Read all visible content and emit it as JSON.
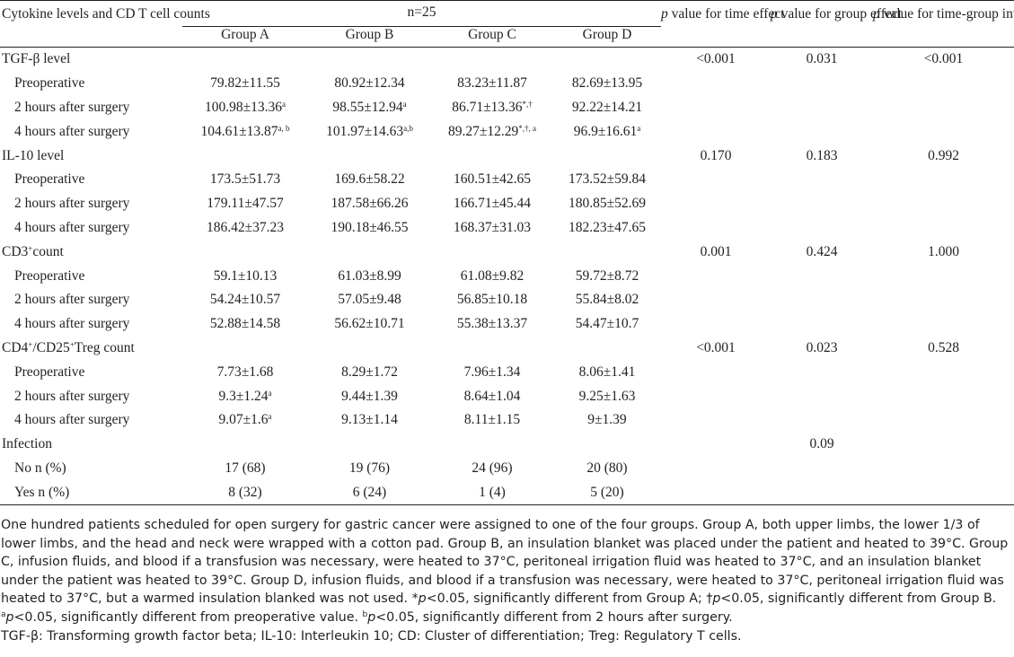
{
  "header": {
    "row_label": "Cytokine levels and CD T cell counts",
    "n_label": "n=25",
    "groups": [
      "Group A",
      "Group B",
      "Group C",
      "Group D"
    ],
    "p_time_label": "value for time effect",
    "p_group_label": "value for group effect",
    "p_inter_label": "value for time-group interaction",
    "p_italic": "p"
  },
  "rows": [
    {
      "label": "TGF-β level",
      "type": "section",
      "values": [
        "",
        "",
        "",
        ""
      ],
      "p_time": "<0.001",
      "p_group": "0.031",
      "p_inter": "<0.001"
    },
    {
      "label": "Preoperative",
      "type": "sub",
      "values": [
        "79.82±11.55",
        "80.92±12.34",
        "83.23±11.87",
        "82.69±13.95"
      ],
      "sups": [
        "",
        "",
        "",
        ""
      ]
    },
    {
      "label": "2 hours after surgery",
      "type": "sub",
      "values": [
        "100.98±13.36",
        "98.55±12.94",
        "86.71±13.36",
        "92.22±14.21"
      ],
      "sups": [
        "a",
        "a",
        "*,†",
        ""
      ]
    },
    {
      "label": "4 hours after surgery",
      "type": "sub",
      "values": [
        "104.61±13.87",
        "101.97±14.63",
        "89.27±12.29",
        "96.9±16.61"
      ],
      "sups": [
        "a, b",
        "a,b",
        "*,†, a",
        "a"
      ]
    },
    {
      "label": "IL-10 level",
      "type": "section",
      "values": [
        "",
        "",
        "",
        ""
      ],
      "p_time": "0.170",
      "p_group": "0.183",
      "p_inter": "0.992"
    },
    {
      "label": "Preoperative",
      "type": "sub",
      "values": [
        "173.5±51.73",
        "169.6±58.22",
        "160.51±42.65",
        "173.52±59.84"
      ],
      "sups": [
        "",
        "",
        "",
        ""
      ]
    },
    {
      "label": "2 hours after surgery",
      "type": "sub",
      "values": [
        "179.11±47.57",
        "187.58±66.26",
        "166.71±45.44",
        "180.85±52.69"
      ],
      "sups": [
        "",
        "",
        "",
        ""
      ]
    },
    {
      "label": "4 hours after surgery",
      "type": "sub",
      "values": [
        "186.42±37.23",
        "190.18±46.55",
        "168.37±31.03",
        "182.23±47.65"
      ],
      "sups": [
        "",
        "",
        "",
        ""
      ]
    },
    {
      "label": "CD3",
      "label_sup": "+",
      "label_rest": "count",
      "type": "section",
      "values": [
        "",
        "",
        "",
        ""
      ],
      "p_time": "0.001",
      "p_group": "0.424",
      "p_inter": "1.000"
    },
    {
      "label": "Preoperative",
      "type": "sub",
      "values": [
        "59.1±10.13",
        "61.03±8.99",
        "61.08±9.82",
        "59.72±8.72"
      ],
      "sups": [
        "",
        "",
        "",
        ""
      ]
    },
    {
      "label": "2 hours after surgery",
      "type": "sub",
      "values": [
        "54.24±10.57",
        "57.05±9.48",
        "56.85±10.18",
        "55.84±8.02"
      ],
      "sups": [
        "",
        "",
        "",
        ""
      ]
    },
    {
      "label": "4 hours after surgery",
      "type": "sub",
      "values": [
        "52.88±14.58",
        "56.62±10.71",
        "55.38±13.37",
        "54.47±10.7"
      ],
      "sups": [
        "",
        "",
        "",
        ""
      ]
    },
    {
      "label": "CD4",
      "label_sup": "+",
      "label_mid": "/CD25",
      "label_sup2": "+",
      "label_rest": "Treg count",
      "type": "section",
      "values": [
        "",
        "",
        "",
        ""
      ],
      "p_time": "<0.001",
      "p_group": "0.023",
      "p_inter": "0.528"
    },
    {
      "label": "Preoperative",
      "type": "sub",
      "values": [
        "7.73±1.68",
        "8.29±1.72",
        "7.96±1.34",
        "8.06±1.41"
      ],
      "sups": [
        "",
        "",
        "",
        ""
      ]
    },
    {
      "label": "2 hours after surgery",
      "type": "sub",
      "values": [
        "9.3±1.24",
        "9.44±1.39",
        "8.64±1.04",
        "9.25±1.63"
      ],
      "sups": [
        "a",
        "",
        "",
        ""
      ]
    },
    {
      "label": "4 hours after surgery",
      "type": "sub",
      "values": [
        "9.07±1.6",
        "9.13±1.14",
        "8.11±1.15",
        "9±1.39"
      ],
      "sups": [
        "a",
        "",
        "",
        ""
      ]
    },
    {
      "label": "Infection",
      "type": "section",
      "values": [
        "",
        "",
        "",
        ""
      ],
      "p_time": "",
      "p_group": "0.09",
      "p_inter": ""
    },
    {
      "label": "No n (%)",
      "type": "sub",
      "values": [
        "17 (68)",
        "19 (76)",
        "24 (96)",
        "20 (80)"
      ],
      "sups": [
        "",
        "",
        "",
        ""
      ]
    },
    {
      "label": "Yes n (%)",
      "type": "sub",
      "values": [
        "8 (32)",
        "6 (24)",
        "1 (4)",
        "5 (20)"
      ],
      "sups": [
        "",
        "",
        "",
        ""
      ]
    }
  ],
  "footnote": {
    "main": "One hundred patients scheduled for open surgery for gastric cancer were assigned to one of the four groups. Group A, both upper limbs, the lower 1/3 of lower limbs, and the head and neck were wrapped with a cotton pad. Group B, an insulation blanket was placed under the patient and heated to 39°C. Group C, infusion fluids, and blood if a transfusion was necessary, were heated to 37°C, peritoneal irrigation fluid was heated to 37°C, and an insulation blanket under the patient was heated to 39°C. Group D, infusion fluids, and blood if a transfusion was necessary, were heated to 37°C, peritoneal irrigation fluid was heated to 37°C, but a warmed insulation blanked was not used. *",
    "p": "p",
    "s1": "<0.05, significantly different from Group A; †",
    "s2": "<0.05, significantly different from Group B. ",
    "sup_a": "a",
    "s3": "<0.05, significantly different from preoperative value. ",
    "sup_b": "b",
    "s4": "<0.05, significantly different from 2 hours after surgery.",
    "abbrev": "TGF-β: Transforming growth factor beta; IL-10: Interleukin 10; CD: Cluster of differentiation; Treg: Regulatory T cells."
  }
}
